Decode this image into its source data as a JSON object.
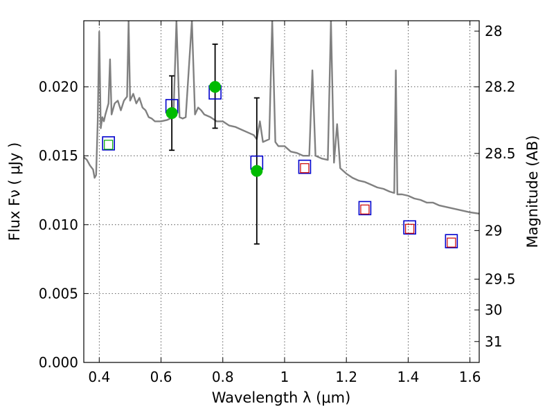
{
  "chart_data": {
    "type": "scatter",
    "title": "",
    "xlabel": "Wavelength  λ (μm)",
    "ylabel": "Flux  Fν  ( μJy )",
    "ylabel_right": "Magnitude (AB)",
    "xlim": [
      0.35,
      1.63
    ],
    "ylim": [
      0.0,
      0.0248
    ],
    "grid": true,
    "x_ticks": [
      0.4,
      0.6,
      0.8,
      1.0,
      1.2,
      1.4,
      1.6
    ],
    "x_tick_labels": [
      "0.4",
      "0.6",
      "0.8",
      "1",
      "1.2",
      "1.4",
      "1.6"
    ],
    "y_ticks": [
      0.0,
      0.005,
      0.01,
      0.015,
      0.02
    ],
    "y_tick_labels": [
      "0.000",
      "0.005",
      "0.010",
      "0.015",
      "0.020"
    ],
    "right_ticks": [
      28,
      28.2,
      28.5,
      29,
      29.5,
      30,
      31
    ],
    "right_tick_labels": [
      "28",
      "28.2",
      "28.5",
      "29",
      "29.5",
      "30",
      "31"
    ],
    "model_spectrum": {
      "color": "#808080",
      "points": [
        [
          0.35,
          0.0149
        ],
        [
          0.36,
          0.0147
        ],
        [
          0.37,
          0.0143
        ],
        [
          0.38,
          0.014
        ],
        [
          0.385,
          0.0134
        ],
        [
          0.39,
          0.0136
        ],
        [
          0.395,
          0.0175
        ],
        [
          0.4,
          0.024
        ],
        [
          0.405,
          0.017
        ],
        [
          0.41,
          0.0178
        ],
        [
          0.415,
          0.0175
        ],
        [
          0.42,
          0.018
        ],
        [
          0.43,
          0.0188
        ],
        [
          0.435,
          0.022
        ],
        [
          0.44,
          0.018
        ],
        [
          0.45,
          0.0188
        ],
        [
          0.46,
          0.019
        ],
        [
          0.47,
          0.0183
        ],
        [
          0.48,
          0.019
        ],
        [
          0.49,
          0.0193
        ],
        [
          0.495,
          0.0248
        ],
        [
          0.5,
          0.019
        ],
        [
          0.51,
          0.0195
        ],
        [
          0.52,
          0.0188
        ],
        [
          0.53,
          0.0192
        ],
        [
          0.54,
          0.0185
        ],
        [
          0.55,
          0.0183
        ],
        [
          0.56,
          0.0178
        ],
        [
          0.57,
          0.0177
        ],
        [
          0.58,
          0.0175
        ],
        [
          0.6,
          0.0175
        ],
        [
          0.62,
          0.0176
        ],
        [
          0.64,
          0.0178
        ],
        [
          0.65,
          0.0248
        ],
        [
          0.66,
          0.0178
        ],
        [
          0.67,
          0.0177
        ],
        [
          0.68,
          0.0178
        ],
        [
          0.7,
          0.0248
        ],
        [
          0.71,
          0.018
        ],
        [
          0.72,
          0.0185
        ],
        [
          0.73,
          0.0183
        ],
        [
          0.74,
          0.018
        ],
        [
          0.76,
          0.0178
        ],
        [
          0.78,
          0.0175
        ],
        [
          0.8,
          0.0175
        ],
        [
          0.82,
          0.0172
        ],
        [
          0.84,
          0.0171
        ],
        [
          0.86,
          0.0169
        ],
        [
          0.88,
          0.0167
        ],
        [
          0.9,
          0.0165
        ],
        [
          0.91,
          0.0162
        ],
        [
          0.92,
          0.0175
        ],
        [
          0.93,
          0.016
        ],
        [
          0.95,
          0.0162
        ],
        [
          0.96,
          0.0248
        ],
        [
          0.97,
          0.016
        ],
        [
          0.98,
          0.0157
        ],
        [
          1.0,
          0.0157
        ],
        [
          1.02,
          0.0153
        ],
        [
          1.04,
          0.0152
        ],
        [
          1.06,
          0.015
        ],
        [
          1.08,
          0.015
        ],
        [
          1.09,
          0.0212
        ],
        [
          1.1,
          0.015
        ],
        [
          1.12,
          0.0148
        ],
        [
          1.14,
          0.0147
        ],
        [
          1.15,
          0.0248
        ],
        [
          1.16,
          0.0145
        ],
        [
          1.17,
          0.0173
        ],
        [
          1.18,
          0.0141
        ],
        [
          1.2,
          0.0137
        ],
        [
          1.22,
          0.0134
        ],
        [
          1.24,
          0.0132
        ],
        [
          1.26,
          0.0131
        ],
        [
          1.28,
          0.0129
        ],
        [
          1.3,
          0.0127
        ],
        [
          1.32,
          0.0126
        ],
        [
          1.34,
          0.0124
        ],
        [
          1.355,
          0.0123
        ],
        [
          1.36,
          0.0212
        ],
        [
          1.365,
          0.0122
        ],
        [
          1.38,
          0.0122
        ],
        [
          1.4,
          0.0121
        ],
        [
          1.42,
          0.0119
        ],
        [
          1.44,
          0.0118
        ],
        [
          1.46,
          0.0116
        ],
        [
          1.48,
          0.0116
        ],
        [
          1.5,
          0.0114
        ],
        [
          1.52,
          0.0113
        ],
        [
          1.54,
          0.0112
        ],
        [
          1.56,
          0.0111
        ],
        [
          1.58,
          0.011
        ],
        [
          1.6,
          0.0109
        ],
        [
          1.63,
          0.0108
        ]
      ]
    },
    "series": [
      {
        "marker": "square",
        "color": "#0000cc",
        "x": [
          0.43,
          0.635,
          0.775,
          0.91,
          1.065,
          1.26,
          1.405,
          1.54
        ],
        "y": [
          0.0159,
          0.0186,
          0.0196,
          0.0145,
          0.0142,
          0.0112,
          0.0098,
          0.0088
        ]
      },
      {
        "marker": "small-square",
        "colors": [
          "#00aa00",
          "#cc0000",
          "#cc0000",
          "#cc0000",
          "#cc0000",
          "#cc0000",
          "#cc0000",
          "#cc0000"
        ],
        "x": [
          0.43,
          0.635,
          0.775,
          0.91,
          1.065,
          1.26,
          1.405,
          1.54
        ],
        "y": [
          0.0158,
          0.0186,
          0.0196,
          0.0145,
          0.0141,
          0.0111,
          0.0097,
          0.0087
        ]
      },
      {
        "marker": "circle-errorbar",
        "color": "#00bb00",
        "x": [
          0.635,
          0.775,
          0.91
        ],
        "y": [
          0.0181,
          0.02,
          0.0139
        ],
        "err_low": [
          0.0154,
          0.017,
          0.0086
        ],
        "err_high": [
          0.0208,
          0.0231,
          0.0192
        ]
      }
    ]
  }
}
